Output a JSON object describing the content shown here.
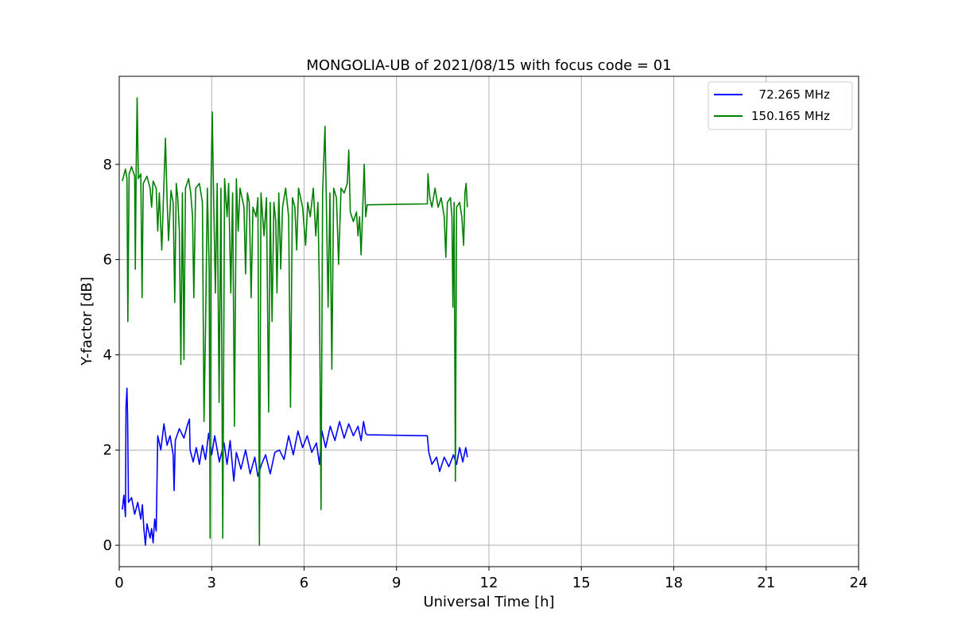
{
  "chart_data": {
    "type": "line",
    "title": "MONGOLIA-UB of 2021/08/15 with focus code = 01",
    "xlabel": "Universal Time [h]",
    "ylabel": "Y-factor [dB]",
    "xlim": [
      0,
      24
    ],
    "ylim": [
      -0.45,
      9.85
    ],
    "xticks": [
      0,
      3,
      6,
      9,
      12,
      15,
      18,
      21,
      24
    ],
    "yticks": [
      0,
      2,
      4,
      6,
      8
    ],
    "grid": true,
    "legend_position": "top-right",
    "series": [
      {
        "name": "  72.265 MHz",
        "color": "#0000ff",
        "points": [
          [
            0.1,
            0.75
          ],
          [
            0.15,
            1.05
          ],
          [
            0.2,
            0.6
          ],
          [
            0.22,
            2.9
          ],
          [
            0.25,
            3.3
          ],
          [
            0.27,
            2.7
          ],
          [
            0.3,
            0.9
          ],
          [
            0.4,
            1.0
          ],
          [
            0.5,
            0.65
          ],
          [
            0.6,
            0.9
          ],
          [
            0.7,
            0.55
          ],
          [
            0.75,
            0.85
          ],
          [
            0.8,
            0.35
          ],
          [
            0.85,
            0.0
          ],
          [
            0.9,
            0.45
          ],
          [
            1.0,
            0.15
          ],
          [
            1.05,
            0.35
          ],
          [
            1.1,
            0.05
          ],
          [
            1.15,
            0.55
          ],
          [
            1.2,
            0.3
          ],
          [
            1.25,
            2.3
          ],
          [
            1.35,
            2.0
          ],
          [
            1.45,
            2.55
          ],
          [
            1.55,
            2.1
          ],
          [
            1.65,
            2.3
          ],
          [
            1.75,
            1.9
          ],
          [
            1.78,
            1.15
          ],
          [
            1.82,
            2.2
          ],
          [
            1.95,
            2.45
          ],
          [
            2.1,
            2.25
          ],
          [
            2.2,
            2.5
          ],
          [
            2.28,
            2.65
          ],
          [
            2.3,
            2.0
          ],
          [
            2.4,
            1.75
          ],
          [
            2.5,
            2.05
          ],
          [
            2.6,
            1.7
          ],
          [
            2.7,
            2.1
          ],
          [
            2.8,
            1.8
          ],
          [
            2.9,
            2.35
          ],
          [
            3.0,
            1.9
          ],
          [
            3.1,
            2.3
          ],
          [
            3.25,
            1.75
          ],
          [
            3.4,
            2.15
          ],
          [
            3.5,
            1.7
          ],
          [
            3.6,
            2.2
          ],
          [
            3.72,
            1.35
          ],
          [
            3.8,
            1.95
          ],
          [
            3.95,
            1.6
          ],
          [
            4.1,
            2.0
          ],
          [
            4.25,
            1.5
          ],
          [
            4.4,
            1.85
          ],
          [
            4.5,
            1.45
          ],
          [
            4.62,
            1.7
          ],
          [
            4.75,
            1.9
          ],
          [
            4.9,
            1.5
          ],
          [
            5.05,
            1.95
          ],
          [
            5.2,
            2.0
          ],
          [
            5.35,
            1.8
          ],
          [
            5.5,
            2.3
          ],
          [
            5.65,
            1.9
          ],
          [
            5.8,
            2.4
          ],
          [
            5.95,
            2.05
          ],
          [
            6.1,
            2.3
          ],
          [
            6.25,
            1.95
          ],
          [
            6.4,
            2.15
          ],
          [
            6.5,
            1.7
          ],
          [
            6.58,
            2.4
          ],
          [
            6.7,
            2.05
          ],
          [
            6.85,
            2.5
          ],
          [
            7.0,
            2.2
          ],
          [
            7.15,
            2.6
          ],
          [
            7.3,
            2.25
          ],
          [
            7.45,
            2.55
          ],
          [
            7.6,
            2.3
          ],
          [
            7.75,
            2.5
          ],
          [
            7.85,
            2.2
          ],
          [
            7.93,
            2.6
          ],
          [
            8.0,
            2.35
          ],
          [
            8.05,
            2.32
          ],
          [
            10.0,
            2.3
          ],
          [
            10.05,
            1.95
          ],
          [
            10.15,
            1.7
          ],
          [
            10.3,
            1.85
          ],
          [
            10.4,
            1.55
          ],
          [
            10.55,
            1.85
          ],
          [
            10.7,
            1.65
          ],
          [
            10.85,
            1.9
          ],
          [
            10.95,
            1.7
          ],
          [
            11.05,
            2.05
          ],
          [
            11.15,
            1.75
          ],
          [
            11.25,
            2.05
          ],
          [
            11.3,
            1.85
          ]
        ]
      },
      {
        "name": "150.165 MHz",
        "color": "#008000",
        "points": [
          [
            0.1,
            7.65
          ],
          [
            0.2,
            7.9
          ],
          [
            0.25,
            7.7
          ],
          [
            0.28,
            4.7
          ],
          [
            0.32,
            7.8
          ],
          [
            0.4,
            7.95
          ],
          [
            0.5,
            7.75
          ],
          [
            0.52,
            5.8
          ],
          [
            0.55,
            7.9
          ],
          [
            0.58,
            9.4
          ],
          [
            0.62,
            7.7
          ],
          [
            0.7,
            7.8
          ],
          [
            0.74,
            5.2
          ],
          [
            0.78,
            7.6
          ],
          [
            0.9,
            7.75
          ],
          [
            1.0,
            7.5
          ],
          [
            1.05,
            7.1
          ],
          [
            1.1,
            7.65
          ],
          [
            1.2,
            7.5
          ],
          [
            1.25,
            6.6
          ],
          [
            1.3,
            7.4
          ],
          [
            1.38,
            6.2
          ],
          [
            1.45,
            7.6
          ],
          [
            1.5,
            8.55
          ],
          [
            1.55,
            7.3
          ],
          [
            1.6,
            6.4
          ],
          [
            1.68,
            7.45
          ],
          [
            1.75,
            7.2
          ],
          [
            1.8,
            5.1
          ],
          [
            1.85,
            7.6
          ],
          [
            1.9,
            7.3
          ],
          [
            1.95,
            6.6
          ],
          [
            2.0,
            3.8
          ],
          [
            2.05,
            7.4
          ],
          [
            2.1,
            3.9
          ],
          [
            2.12,
            5.5
          ],
          [
            2.15,
            7.5
          ],
          [
            2.25,
            7.7
          ],
          [
            2.32,
            7.4
          ],
          [
            2.38,
            6.9
          ],
          [
            2.42,
            5.2
          ],
          [
            2.48,
            7.5
          ],
          [
            2.6,
            7.6
          ],
          [
            2.7,
            7.2
          ],
          [
            2.75,
            2.6
          ],
          [
            2.8,
            4.5
          ],
          [
            2.86,
            7.5
          ],
          [
            2.92,
            5.8
          ],
          [
            2.95,
            0.15
          ],
          [
            2.98,
            7.6
          ],
          [
            3.02,
            9.1
          ],
          [
            3.06,
            7.4
          ],
          [
            3.12,
            5.3
          ],
          [
            3.18,
            7.6
          ],
          [
            3.24,
            3.0
          ],
          [
            3.3,
            7.5
          ],
          [
            3.36,
            0.15
          ],
          [
            3.42,
            7.7
          ],
          [
            3.5,
            6.9
          ],
          [
            3.55,
            7.6
          ],
          [
            3.62,
            5.3
          ],
          [
            3.68,
            7.4
          ],
          [
            3.74,
            2.5
          ],
          [
            3.8,
            7.7
          ],
          [
            3.86,
            6.6
          ],
          [
            3.92,
            7.5
          ],
          [
            4.05,
            7.1
          ],
          [
            4.1,
            5.7
          ],
          [
            4.16,
            7.4
          ],
          [
            4.22,
            7.2
          ],
          [
            4.28,
            5.2
          ],
          [
            4.34,
            7.1
          ],
          [
            4.44,
            6.9
          ],
          [
            4.5,
            7.3
          ],
          [
            4.55,
            0.0
          ],
          [
            4.6,
            7.4
          ],
          [
            4.7,
            6.5
          ],
          [
            4.78,
            7.3
          ],
          [
            4.85,
            2.8
          ],
          [
            4.9,
            7.2
          ],
          [
            4.96,
            4.7
          ],
          [
            5.02,
            7.2
          ],
          [
            5.08,
            6.8
          ],
          [
            5.12,
            5.3
          ],
          [
            5.18,
            7.4
          ],
          [
            5.24,
            5.8
          ],
          [
            5.3,
            7.1
          ],
          [
            5.4,
            7.5
          ],
          [
            5.5,
            6.9
          ],
          [
            5.56,
            2.9
          ],
          [
            5.62,
            7.3
          ],
          [
            5.7,
            7.1
          ],
          [
            5.76,
            6.2
          ],
          [
            5.82,
            7.5
          ],
          [
            5.95,
            7.1
          ],
          [
            6.05,
            6.3
          ],
          [
            6.12,
            7.2
          ],
          [
            6.2,
            6.9
          ],
          [
            6.3,
            7.5
          ],
          [
            6.38,
            6.5
          ],
          [
            6.45,
            7.2
          ],
          [
            6.5,
            5.2
          ],
          [
            6.55,
            0.75
          ],
          [
            6.6,
            7.4
          ],
          [
            6.68,
            8.8
          ],
          [
            6.72,
            7.3
          ],
          [
            6.78,
            5.0
          ],
          [
            6.84,
            7.4
          ],
          [
            6.9,
            3.7
          ],
          [
            6.96,
            7.5
          ],
          [
            7.05,
            7.3
          ],
          [
            7.12,
            5.9
          ],
          [
            7.2,
            7.5
          ],
          [
            7.3,
            7.4
          ],
          [
            7.4,
            7.6
          ],
          [
            7.45,
            8.3
          ],
          [
            7.5,
            7.0
          ],
          [
            7.6,
            6.8
          ],
          [
            7.7,
            7.0
          ],
          [
            7.75,
            6.5
          ],
          [
            7.8,
            6.9
          ],
          [
            7.85,
            6.1
          ],
          [
            7.9,
            7.0
          ],
          [
            7.95,
            8.0
          ],
          [
            8.0,
            6.9
          ],
          [
            8.05,
            7.15
          ],
          [
            10.0,
            7.17
          ],
          [
            10.02,
            7.8
          ],
          [
            10.08,
            7.3
          ],
          [
            10.15,
            7.1
          ],
          [
            10.25,
            7.5
          ],
          [
            10.35,
            7.1
          ],
          [
            10.45,
            7.3
          ],
          [
            10.55,
            6.9
          ],
          [
            10.6,
            6.05
          ],
          [
            10.65,
            7.2
          ],
          [
            10.75,
            7.3
          ],
          [
            10.8,
            6.9
          ],
          [
            10.83,
            5.0
          ],
          [
            10.87,
            7.2
          ],
          [
            10.91,
            1.35
          ],
          [
            10.95,
            7.1
          ],
          [
            11.05,
            7.2
          ],
          [
            11.12,
            6.9
          ],
          [
            11.18,
            6.3
          ],
          [
            11.22,
            7.4
          ],
          [
            11.26,
            7.6
          ],
          [
            11.3,
            7.1
          ]
        ]
      }
    ]
  }
}
